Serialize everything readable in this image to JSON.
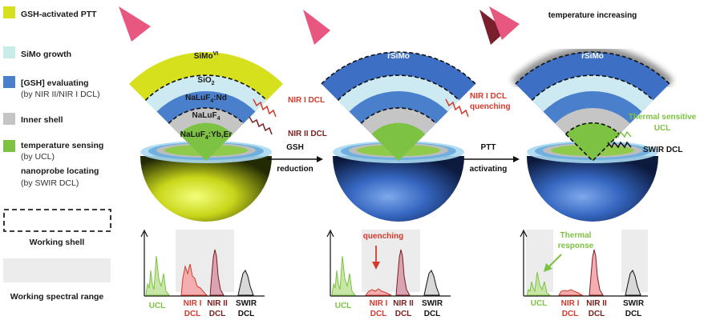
{
  "legend": {
    "items": [
      {
        "label": "GSH-activated PTT",
        "color": "#d7e01c"
      },
      {
        "label": "SiMo growth",
        "color": "#c9ece9"
      },
      {
        "label": "[GSH] evaluating",
        "sub": "(by NIR II/NIR I DCL)",
        "color": "#4a7fcc"
      },
      {
        "label": "Inner shell",
        "color": "#c5c5c5"
      },
      {
        "label": "temperature sensing",
        "sub": "(by UCL)",
        "color": "#7dc242"
      },
      {
        "label": "nanoprobe locating",
        "sub": "(by SWIR DCL)"
      }
    ],
    "working_shell": "Working shell",
    "working_range": "Working spectral range"
  },
  "stage1": {
    "outer_label": "SiMo",
    "outer_sup": "VI",
    "sio2_label": "SiO",
    "sio2_sub": "2",
    "nd_label_a": "NaLuF",
    "nd_label_sub": "4",
    "nd_label_b": ":Nd",
    "inner_label_a": "NaLuF",
    "inner_label_sub": "4",
    "core_label_a": "NaLuF",
    "core_label_sub": "4",
    "core_label_b": ":Yb,Er",
    "nir1": "NIR I DCL",
    "nir2": "NIR II DCL"
  },
  "arrow1": {
    "top": "GSH",
    "bottom": "reduction"
  },
  "stage2": {
    "outer_label": "rSiMo",
    "nir1_line1": "NIR I DCL",
    "nir1_line2": "quenching"
  },
  "arrow2": {
    "top": "PTT",
    "bottom": "activating"
  },
  "stage3": {
    "title": "temperature increasing",
    "outer_label": "rSiMo",
    "ucl_line1": "Thermal sensitive",
    "ucl_line2": "UCL",
    "swir": "SWIR DCL"
  },
  "spectra": {
    "labels": {
      "ucl": "UCL",
      "nir1_a": "NIR I",
      "nir1_b": "DCL",
      "nir2_a": "NIR II",
      "nir2_b": "DCL",
      "swir_a": "SWIR",
      "swir_b": "DCL"
    },
    "panel2_note": "quenching",
    "panel3_note_a": "Thermal",
    "panel3_note_b": "response"
  },
  "colors": {
    "yellow": "#d7e01c",
    "lightcyan": "#c9ece9",
    "blue": "#4a7fcc",
    "gray": "#c5c5c5",
    "green": "#7dc242",
    "red": "#d33a2c",
    "darkred": "#7a1f1f",
    "pink": "#e8577f"
  }
}
